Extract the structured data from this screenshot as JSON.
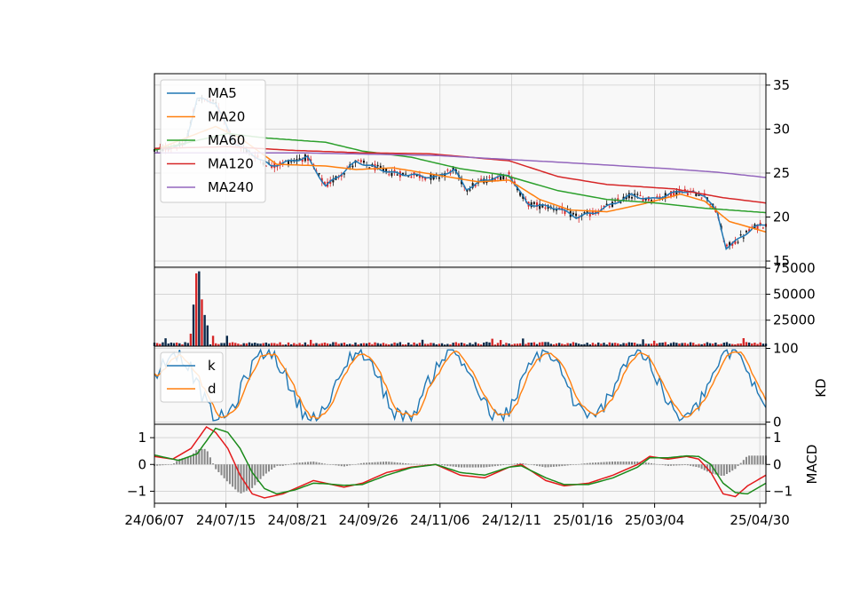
{
  "chart_data": [
    {
      "type": "candlestick",
      "panel": "price",
      "ylim": [
        14.3,
        36.3
      ],
      "yticks": [
        "15",
        "20",
        "25",
        "30",
        "35"
      ],
      "grid": true,
      "legend_position": "top-left",
      "series": [
        {
          "name": "MA5",
          "color": "#1f77b4"
        },
        {
          "name": "MA20",
          "color": "#ff7f0e"
        },
        {
          "name": "MA60",
          "color": "#2ca02c"
        },
        {
          "name": "MA120",
          "color": "#d62728"
        },
        {
          "name": "MA240",
          "color": "#9467bd"
        }
      ],
      "ma_keypoints": {
        "MA5": [
          [
            0,
            27.6
          ],
          [
            0.05,
            28.2
          ],
          [
            0.07,
            33.5
          ],
          [
            0.1,
            33.0
          ],
          [
            0.13,
            28.5
          ],
          [
            0.19,
            25.8
          ],
          [
            0.25,
            26.8
          ],
          [
            0.28,
            23.5
          ],
          [
            0.33,
            26.3
          ],
          [
            0.39,
            25.0
          ],
          [
            0.46,
            24.5
          ],
          [
            0.49,
            25.4
          ],
          [
            0.51,
            23.2
          ],
          [
            0.54,
            24.2
          ],
          [
            0.58,
            24.8
          ],
          [
            0.61,
            21.5
          ],
          [
            0.66,
            21.0
          ],
          [
            0.69,
            20.0
          ],
          [
            0.72,
            20.5
          ],
          [
            0.78,
            22.5
          ],
          [
            0.81,
            22.0
          ],
          [
            0.84,
            22.5
          ],
          [
            0.86,
            23.0
          ],
          [
            0.9,
            22.5
          ],
          [
            0.92,
            20.5
          ],
          [
            0.935,
            16.5
          ],
          [
            0.95,
            17.2
          ],
          [
            0.98,
            18.8
          ],
          [
            1.0,
            19.2
          ]
        ],
        "MA20": [
          [
            0,
            27.6
          ],
          [
            0.1,
            30.3
          ],
          [
            0.14,
            29.0
          ],
          [
            0.2,
            26.0
          ],
          [
            0.28,
            25.8
          ],
          [
            0.33,
            25.4
          ],
          [
            0.39,
            25.6
          ],
          [
            0.46,
            24.8
          ],
          [
            0.53,
            24.0
          ],
          [
            0.58,
            24.2
          ],
          [
            0.63,
            22.0
          ],
          [
            0.68,
            20.8
          ],
          [
            0.74,
            20.6
          ],
          [
            0.8,
            21.5
          ],
          [
            0.86,
            22.6
          ],
          [
            0.9,
            21.8
          ],
          [
            0.94,
            19.5
          ],
          [
            1.0,
            18.3
          ]
        ],
        "MA60": [
          [
            0,
            27.6
          ],
          [
            0.12,
            29.5
          ],
          [
            0.18,
            29.0
          ],
          [
            0.28,
            28.5
          ],
          [
            0.34,
            27.5
          ],
          [
            0.42,
            26.8
          ],
          [
            0.5,
            25.5
          ],
          [
            0.57,
            24.8
          ],
          [
            0.66,
            23.0
          ],
          [
            0.74,
            22.0
          ],
          [
            0.82,
            21.6
          ],
          [
            0.9,
            21.0
          ],
          [
            1.0,
            20.5
          ]
        ],
        "MA120": [
          [
            0,
            27.8
          ],
          [
            0.12,
            28.0
          ],
          [
            0.22,
            27.6
          ],
          [
            0.34,
            27.3
          ],
          [
            0.45,
            27.2
          ],
          [
            0.58,
            26.4
          ],
          [
            0.66,
            24.6
          ],
          [
            0.74,
            23.7
          ],
          [
            0.85,
            23.2
          ],
          [
            0.93,
            22.2
          ],
          [
            1.0,
            21.6
          ]
        ],
        "MA240": [
          [
            0,
            27.3
          ],
          [
            0.24,
            27.3
          ],
          [
            0.46,
            27.0
          ],
          [
            0.67,
            26.2
          ],
          [
            0.84,
            25.5
          ],
          [
            0.92,
            25.1
          ],
          [
            1.0,
            24.5
          ]
        ]
      }
    },
    {
      "type": "bar",
      "panel": "volume",
      "ylim": [
        0,
        76000
      ],
      "yticks": [
        "25000",
        "50000",
        "75000"
      ],
      "grid": true,
      "spikes": [
        [
          0.065,
          40000
        ],
        [
          0.07,
          70000
        ],
        [
          0.076,
          72000
        ],
        [
          0.08,
          45000
        ],
        [
          0.083,
          30000
        ],
        [
          0.06,
          12000
        ],
        [
          0.088,
          20000
        ],
        [
          0.095,
          10000
        ],
        [
          0.12,
          10000
        ]
      ]
    },
    {
      "type": "line",
      "panel": "KD",
      "ylabel": "KD",
      "ylim": [
        -3,
        103
      ],
      "yticks": [
        "0",
        "100"
      ],
      "grid": true,
      "legend_position": "top-left",
      "series": [
        {
          "name": "k",
          "color": "#1f77b4"
        },
        {
          "name": "d",
          "color": "#ff7f0e"
        }
      ]
    },
    {
      "type": "line",
      "panel": "MACD",
      "ylabel": "MACD",
      "ylim": [
        -1.45,
        1.5
      ],
      "yticks": [
        "−1",
        "0",
        "1"
      ],
      "grid": true,
      "x_tick_labels": [
        "24/06/07",
        "24/07/15",
        "24/08/21",
        "24/09/26",
        "24/11/06",
        "24/12/11",
        "25/01/16",
        "25/03/04",
        "25/04/30"
      ],
      "macd_keypoints": {
        "red": [
          [
            0,
            0.3
          ],
          [
            0.03,
            0.2
          ],
          [
            0.06,
            0.6
          ],
          [
            0.085,
            1.4
          ],
          [
            0.1,
            1.2
          ],
          [
            0.12,
            0.6
          ],
          [
            0.14,
            -0.4
          ],
          [
            0.16,
            -1.1
          ],
          [
            0.18,
            -1.25
          ],
          [
            0.21,
            -1.1
          ],
          [
            0.23,
            -0.9
          ],
          [
            0.26,
            -0.6
          ],
          [
            0.28,
            -0.7
          ],
          [
            0.31,
            -0.85
          ],
          [
            0.34,
            -0.7
          ],
          [
            0.38,
            -0.3
          ],
          [
            0.42,
            -0.1
          ],
          [
            0.46,
            0.0
          ],
          [
            0.5,
            -0.4
          ],
          [
            0.54,
            -0.5
          ],
          [
            0.58,
            -0.1
          ],
          [
            0.6,
            0.0
          ],
          [
            0.64,
            -0.6
          ],
          [
            0.67,
            -0.8
          ],
          [
            0.71,
            -0.7
          ],
          [
            0.75,
            -0.4
          ],
          [
            0.79,
            0.0
          ],
          [
            0.81,
            0.3
          ],
          [
            0.84,
            0.2
          ],
          [
            0.87,
            0.3
          ],
          [
            0.89,
            0.2
          ],
          [
            0.91,
            -0.3
          ],
          [
            0.93,
            -1.1
          ],
          [
            0.95,
            -1.2
          ],
          [
            0.97,
            -0.8
          ],
          [
            1.0,
            -0.4
          ]
        ],
        "green": [
          [
            0,
            0.35
          ],
          [
            0.04,
            0.15
          ],
          [
            0.07,
            0.4
          ],
          [
            0.1,
            1.35
          ],
          [
            0.12,
            1.2
          ],
          [
            0.14,
            0.6
          ],
          [
            0.16,
            -0.3
          ],
          [
            0.18,
            -0.9
          ],
          [
            0.2,
            -1.1
          ],
          [
            0.23,
            -0.95
          ],
          [
            0.26,
            -0.7
          ],
          [
            0.28,
            -0.72
          ],
          [
            0.31,
            -0.78
          ],
          [
            0.34,
            -0.75
          ],
          [
            0.38,
            -0.4
          ],
          [
            0.42,
            -0.12
          ],
          [
            0.46,
            0.0
          ],
          [
            0.5,
            -0.3
          ],
          [
            0.54,
            -0.4
          ],
          [
            0.58,
            -0.1
          ],
          [
            0.6,
            -0.05
          ],
          [
            0.64,
            -0.5
          ],
          [
            0.67,
            -0.75
          ],
          [
            0.71,
            -0.75
          ],
          [
            0.75,
            -0.5
          ],
          [
            0.79,
            -0.1
          ],
          [
            0.81,
            0.25
          ],
          [
            0.84,
            0.25
          ],
          [
            0.87,
            0.32
          ],
          [
            0.89,
            0.3
          ],
          [
            0.91,
            0.0
          ],
          [
            0.93,
            -0.7
          ],
          [
            0.95,
            -1.05
          ],
          [
            0.97,
            -1.1
          ],
          [
            1.0,
            -0.7
          ]
        ]
      }
    }
  ]
}
